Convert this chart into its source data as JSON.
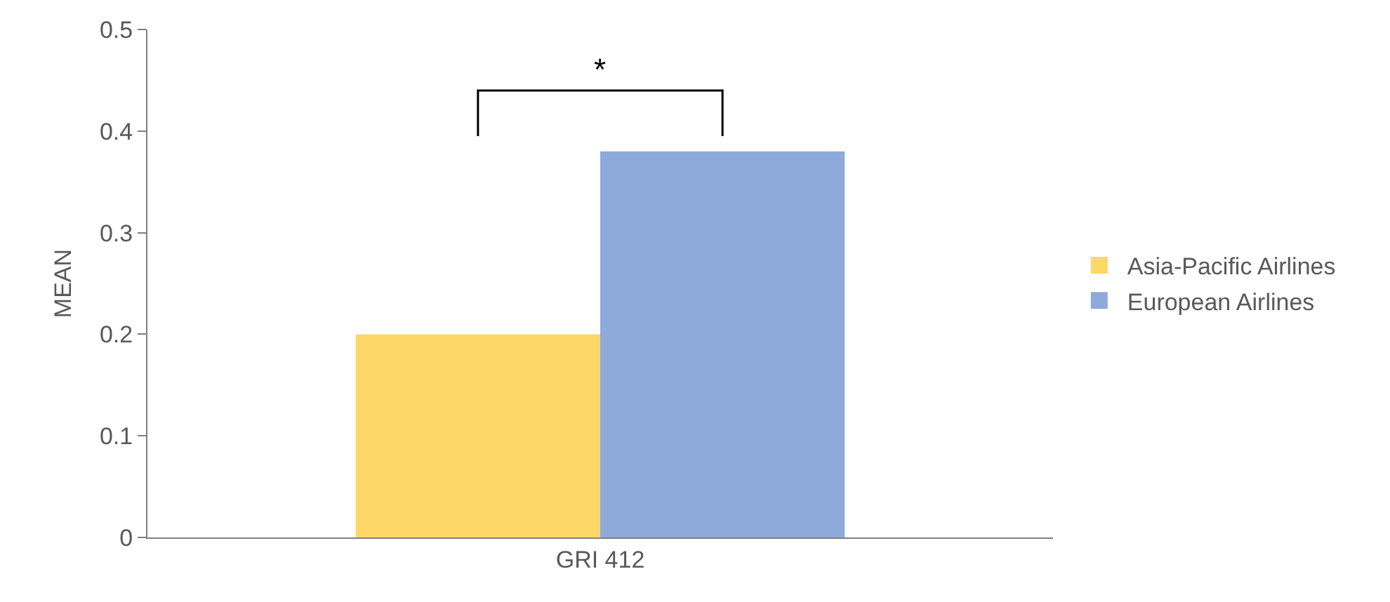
{
  "chart_data": {
    "type": "bar",
    "ylabel": "MEAN",
    "categories": [
      "GRI 412"
    ],
    "series": [
      {
        "name": "Asia-Pacific Airlines",
        "color": "#fdd868",
        "values": [
          0.2
        ]
      },
      {
        "name": "European Airlines",
        "color": "#8eaadb",
        "values": [
          0.38
        ]
      }
    ],
    "ylim": [
      0,
      0.5
    ],
    "yticks": [
      0,
      0.1,
      0.2,
      0.3,
      0.4,
      0.5
    ],
    "legend": "right",
    "annotations": [
      "*"
    ]
  }
}
